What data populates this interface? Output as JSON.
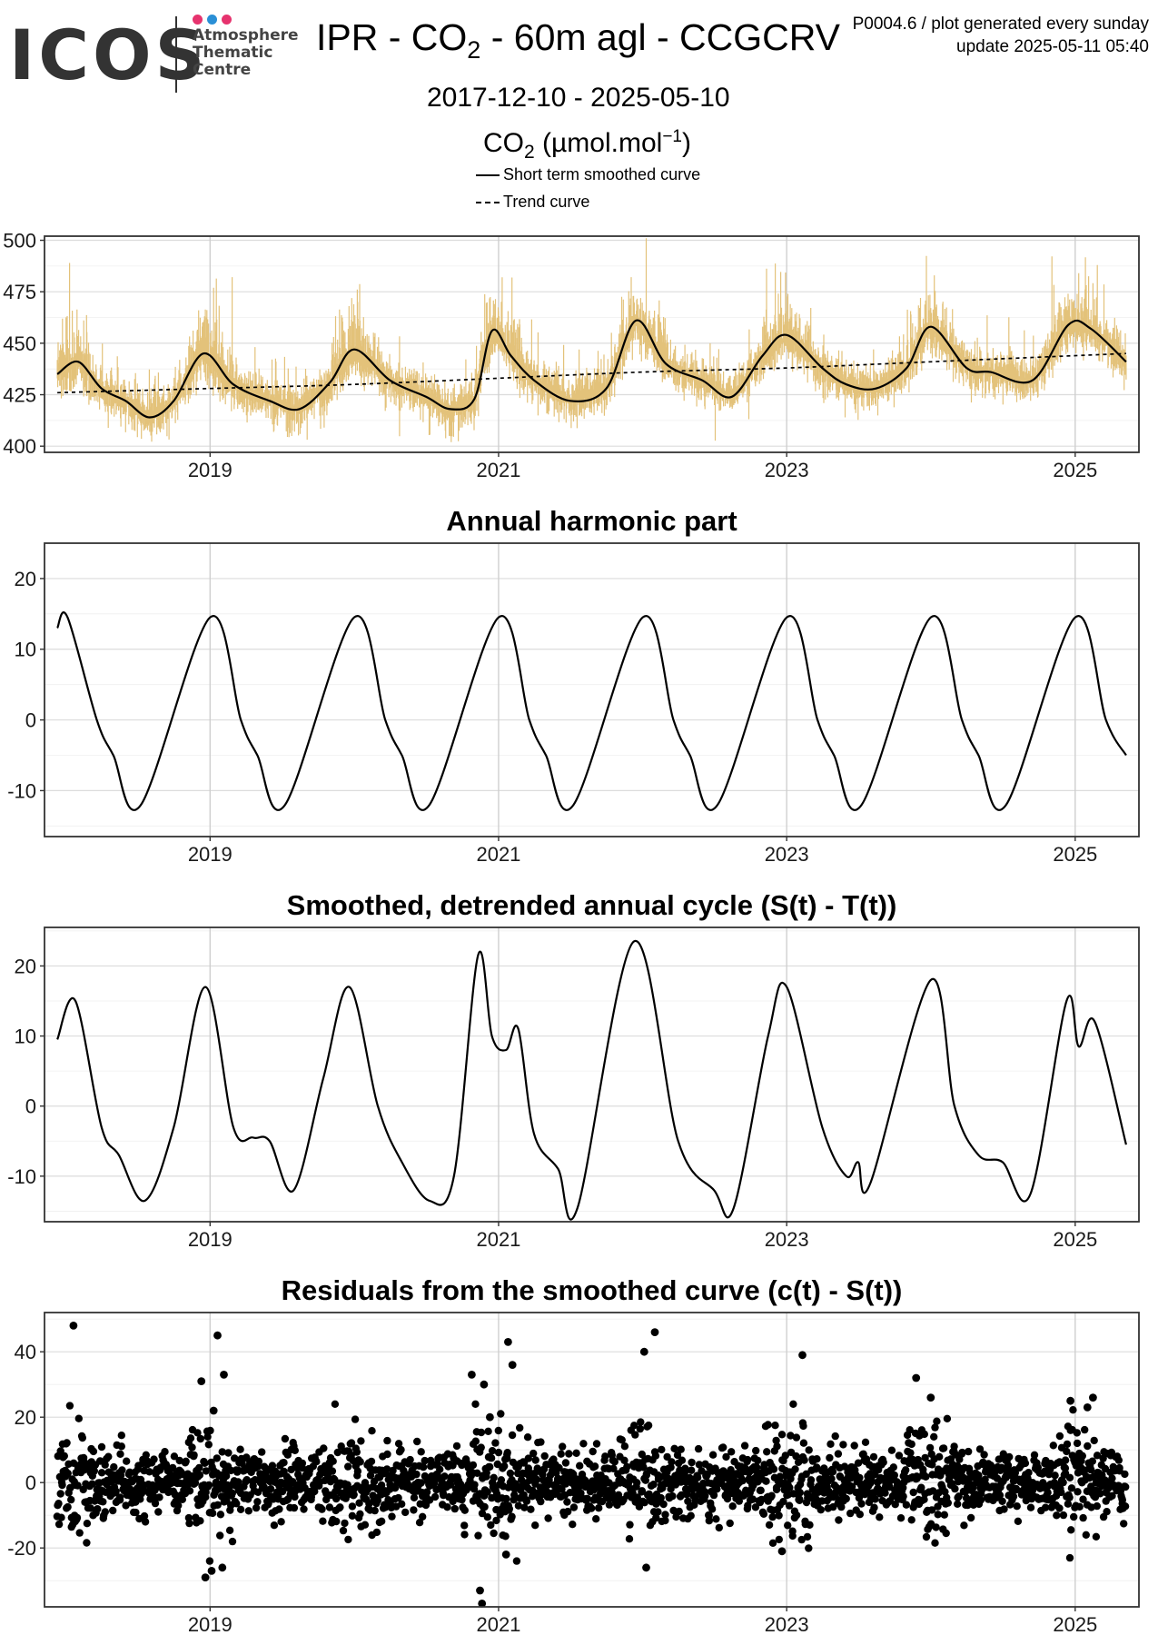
{
  "header": {
    "logo_word": "ICOS",
    "logo_sub": [
      "Atmosphere",
      "Thematic",
      "Centre"
    ],
    "logo_dot_colors": [
      "#e6336e",
      "#2a8fd6",
      "#e6336e"
    ],
    "title_pre": "IPR - CO",
    "title_sub": "2",
    "title_post": " - 60m agl - CCGCRV",
    "meta_line1": "P0004.6 / plot generated every sunday",
    "meta_line2": "update  2025-05-11 05:40",
    "date_range": "2017-12-10 - 2025-05-10",
    "unit_pre": "CO",
    "unit_sub": "2",
    "unit_mid": " (µmol.mol",
    "unit_sup": "−1",
    "unit_post": ")",
    "legend": [
      "Short term smoothed curve",
      "Trend curve"
    ]
  },
  "colors": {
    "raw": "#e3c27a",
    "line": "#000000",
    "grid": "#d9d9d9",
    "frame": "#333333"
  },
  "chart_data": [
    {
      "type": "line",
      "title": "",
      "x_range": [
        "2017-12-10",
        "2025-05-10"
      ],
      "ylim": [
        397,
        502
      ],
      "yticks": [
        400,
        425,
        450,
        475,
        500
      ],
      "xticks": [
        "2019",
        "2021",
        "2023",
        "2025"
      ],
      "grid": true,
      "series": [
        {
          "name": "Short term smoothed curve",
          "style": "solid",
          "x": [
            "2017-12-10",
            "2018-02-01",
            "2018-04-01",
            "2018-06-01",
            "2018-08-01",
            "2018-10-01",
            "2018-12-15",
            "2019-03-01",
            "2019-06-01",
            "2019-08-15",
            "2019-11-01",
            "2020-01-01",
            "2020-04-01",
            "2020-07-01",
            "2020-09-01",
            "2020-11-01",
            "2020-12-15",
            "2021-02-01",
            "2021-04-01",
            "2021-07-01",
            "2021-10-01",
            "2021-12-15",
            "2022-03-01",
            "2022-06-01",
            "2022-08-15",
            "2022-11-01",
            "2023-01-01",
            "2023-04-01",
            "2023-06-01",
            "2023-08-15",
            "2023-11-01",
            "2024-01-01",
            "2024-04-01",
            "2024-06-01",
            "2024-09-15",
            "2024-12-15",
            "2025-02-10",
            "2025-05-10"
          ],
          "y": [
            435,
            441,
            428,
            422,
            414,
            422,
            445,
            430,
            422,
            418,
            431,
            447,
            432,
            424,
            418,
            423,
            456,
            444,
            432,
            422,
            428,
            461,
            440,
            432,
            424,
            444,
            454,
            438,
            430,
            428,
            438,
            458,
            438,
            436,
            432,
            459,
            457,
            441
          ]
        },
        {
          "name": "Trend curve",
          "style": "dashed",
          "x": [
            "2017-12-10",
            "2019-01-01",
            "2020-01-01",
            "2021-01-01",
            "2022-01-01",
            "2023-01-01",
            "2024-01-01",
            "2025-05-10"
          ],
          "y": [
            426,
            428,
            430,
            433,
            436,
            438,
            441,
            445
          ]
        }
      ],
      "raw_band": {
        "peaks": [
          489,
          477,
          470,
          482,
          501,
          469,
          483,
          484
        ],
        "min": 402
      }
    },
    {
      "type": "line",
      "title": "Annual harmonic part",
      "x_range": [
        "2017-12-10",
        "2025-05-10"
      ],
      "ylim": [
        -16.5,
        25
      ],
      "yticks": [
        -10,
        0,
        10,
        20
      ],
      "xticks": [
        "2019",
        "2021",
        "2023",
        "2025"
      ],
      "grid": true,
      "series": [
        {
          "name": "",
          "style": "solid",
          "x": [
            "2017-12-10",
            "2018-01-05",
            "2018-03-20",
            "2018-05-01",
            "2018-07-10",
            "2019-01-01",
            "2019-03-20",
            "2019-05-01",
            "2019-07-10",
            "2020-01-01",
            "2020-03-20",
            "2020-05-01",
            "2020-07-10",
            "2021-01-01",
            "2021-03-20",
            "2021-05-01",
            "2021-07-10",
            "2022-01-01",
            "2022-03-20",
            "2022-05-01",
            "2022-07-10",
            "2023-01-01",
            "2023-03-20",
            "2023-05-01",
            "2023-07-10",
            "2024-01-01",
            "2024-03-20",
            "2024-05-01",
            "2024-07-10",
            "2025-01-01",
            "2025-03-20",
            "2025-05-10"
          ],
          "y": [
            13,
            14.5,
            0,
            -5,
            -12,
            14.5,
            0,
            -5,
            -12,
            14.5,
            0,
            -5,
            -12,
            14.5,
            0,
            -5,
            -12,
            14.5,
            0,
            -5,
            -12,
            14.5,
            0,
            -5,
            -12,
            14.5,
            0,
            -5,
            -12,
            14.5,
            0,
            -5
          ]
        }
      ]
    },
    {
      "type": "line",
      "title": "Smoothed, detrended annual cycle (S(t) - T(t))",
      "x_range": [
        "2017-12-10",
        "2025-05-10"
      ],
      "ylim": [
        -16.5,
        25.5
      ],
      "yticks": [
        -10,
        0,
        10,
        20
      ],
      "xticks": [
        "2019",
        "2021",
        "2023",
        "2025"
      ],
      "grid": true,
      "series": [
        {
          "name": "",
          "style": "solid",
          "x": [
            "2017-12-10",
            "2018-01-25",
            "2018-04-01",
            "2018-05-15",
            "2018-07-20",
            "2018-10-01",
            "2018-12-20",
            "2019-03-01",
            "2019-04-20",
            "2019-06-01",
            "2019-08-01",
            "2019-10-15",
            "2019-12-20",
            "2020-03-01",
            "2020-05-01",
            "2020-07-10",
            "2020-09-10",
            "2020-11-10",
            "2020-12-15",
            "2021-01-20",
            "2021-02-20",
            "2021-04-01",
            "2021-06-01",
            "2021-07-20",
            "2021-12-10",
            "2022-04-01",
            "2022-07-01",
            "2022-08-20",
            "2022-11-15",
            "2023-01-01",
            "2023-04-01",
            "2023-06-01",
            "2023-07-01",
            "2023-08-01",
            "2024-01-01",
            "2024-03-01",
            "2024-05-01",
            "2024-07-01",
            "2024-09-10",
            "2024-12-10",
            "2025-01-10",
            "2025-02-20",
            "2025-05-10"
          ],
          "y": [
            9.5,
            15,
            -3,
            -7,
            -13.5,
            -3,
            17,
            -3,
            -4.5,
            -5,
            -12,
            4,
            17,
            0,
            -8,
            -13.5,
            -10,
            21.5,
            10,
            8,
            11,
            -4,
            -9,
            -14.5,
            23.5,
            -5,
            -12,
            -14.5,
            10,
            17,
            -3,
            -10,
            -8,
            -11,
            18,
            0,
            -7,
            -8,
            -12.5,
            15,
            8.5,
            12,
            -5.5
          ]
        }
      ]
    },
    {
      "type": "scatter",
      "title": "Residuals from the smoothed curve (c(t) - S(t))",
      "x_range": [
        "2017-12-10",
        "2025-05-10"
      ],
      "ylim": [
        -38,
        52
      ],
      "yticks": [
        -20,
        0,
        20,
        40
      ],
      "xticks": [
        "2019",
        "2021",
        "2023",
        "2025"
      ],
      "grid": true,
      "outliers": {
        "x": [
          "2018-01-20",
          "2018-12-10",
          "2019-01-10",
          "2019-01-20",
          "2019-02-05",
          "2020-10-25",
          "2020-11-25",
          "2020-12-10",
          "2021-01-25",
          "2021-02-05",
          "2022-01-05",
          "2022-02-01",
          "2023-02-10",
          "2023-11-25",
          "2024-01-01",
          "2024-12-20",
          "2025-02-01",
          "2025-02-15",
          "2018-12-20",
          "2019-01-05",
          "2020-11-15",
          "2020-11-20",
          "2021-01-20",
          "2022-01-10",
          "2019-02-01",
          "2022-12-20"
        ],
        "y": [
          48,
          31,
          22,
          45,
          33,
          33,
          30,
          20,
          43,
          36,
          40,
          46,
          39,
          32,
          26,
          25,
          23,
          26,
          -29,
          -27,
          -33,
          -37,
          -22,
          -26,
          -26,
          -21
        ]
      }
    }
  ]
}
